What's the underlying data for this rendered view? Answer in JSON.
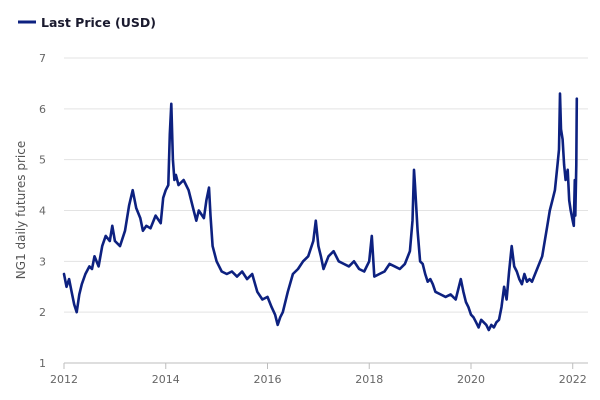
{
  "chart_data": {
    "type": "line",
    "ylabel": "NG1 daily futures price",
    "legend": {
      "placement": "top-left"
    },
    "grid": true,
    "xlim": [
      2012.0,
      2022.3
    ],
    "ylim": [
      1,
      7
    ],
    "xticks": [
      "2012",
      "2014",
      "2016",
      "2018",
      "2020",
      "2022"
    ],
    "yticks": [
      "1",
      "2",
      "3",
      "4",
      "5",
      "6",
      "7"
    ],
    "series": [
      {
        "name": "Last Price (USD)",
        "color": "#0d2180",
        "x": [
          2012.0,
          2012.05,
          2012.1,
          2012.15,
          2012.2,
          2012.25,
          2012.3,
          2012.35,
          2012.42,
          2012.5,
          2012.55,
          2012.6,
          2012.68,
          2012.75,
          2012.82,
          2012.9,
          2012.95,
          2013.0,
          2013.1,
          2013.2,
          2013.28,
          2013.35,
          2013.42,
          2013.5,
          2013.55,
          2013.62,
          2013.7,
          2013.8,
          2013.9,
          2013.95,
          2014.0,
          2014.05,
          2014.08,
          2014.11,
          2014.14,
          2014.17,
          2014.2,
          2014.25,
          2014.35,
          2014.45,
          2014.55,
          2014.6,
          2014.65,
          2014.75,
          2014.8,
          2014.85,
          2014.88,
          2014.92,
          2015.0,
          2015.1,
          2015.2,
          2015.3,
          2015.4,
          2015.5,
          2015.6,
          2015.7,
          2015.8,
          2015.9,
          2016.0,
          2016.08,
          2016.15,
          2016.2,
          2016.25,
          2016.3,
          2016.4,
          2016.5,
          2016.6,
          2016.7,
          2016.8,
          2016.9,
          2016.95,
          2017.0,
          2017.05,
          2017.1,
          2017.2,
          2017.3,
          2017.4,
          2017.5,
          2017.6,
          2017.7,
          2017.8,
          2017.9,
          2018.0,
          2018.05,
          2018.1,
          2018.2,
          2018.3,
          2018.4,
          2018.5,
          2018.6,
          2018.7,
          2018.8,
          2018.85,
          2018.88,
          2018.9,
          2018.95,
          2019.0,
          2019.05,
          2019.1,
          2019.15,
          2019.2,
          2019.25,
          2019.3,
          2019.4,
          2019.5,
          2019.6,
          2019.7,
          2019.8,
          2019.85,
          2019.9,
          2019.95,
          2020.0,
          2020.05,
          2020.1,
          2020.15,
          2020.2,
          2020.25,
          2020.3,
          2020.35,
          2020.4,
          2020.45,
          2020.5,
          2020.55,
          2020.6,
          2020.65,
          2020.7,
          2020.75,
          2020.8,
          2020.85,
          2020.9,
          2020.95,
          2021.0,
          2021.05,
          2021.1,
          2021.15,
          2021.2,
          2021.3,
          2021.4,
          2021.5,
          2021.55,
          2021.6,
          2021.65,
          2021.7,
          2021.73,
          2021.75,
          2021.77,
          2021.8,
          2021.83,
          2021.86,
          2021.9,
          2021.93,
          2021.96,
          2022.0,
          2022.02,
          2022.04,
          2022.05,
          2022.07,
          2022.08
        ],
        "values": [
          2.75,
          2.5,
          2.65,
          2.4,
          2.15,
          2.0,
          2.35,
          2.55,
          2.75,
          2.9,
          2.85,
          3.1,
          2.9,
          3.3,
          3.5,
          3.4,
          3.7,
          3.4,
          3.3,
          3.6,
          4.1,
          4.4,
          4.05,
          3.85,
          3.6,
          3.7,
          3.65,
          3.9,
          3.75,
          4.25,
          4.4,
          4.5,
          5.5,
          6.1,
          5.0,
          4.6,
          4.7,
          4.5,
          4.6,
          4.4,
          4.0,
          3.8,
          4.0,
          3.85,
          4.2,
          4.45,
          3.9,
          3.3,
          3.0,
          2.8,
          2.75,
          2.8,
          2.7,
          2.8,
          2.65,
          2.75,
          2.4,
          2.25,
          2.3,
          2.1,
          1.95,
          1.75,
          1.9,
          2.0,
          2.4,
          2.75,
          2.85,
          3.0,
          3.1,
          3.4,
          3.8,
          3.3,
          3.1,
          2.85,
          3.1,
          3.2,
          3.0,
          2.95,
          2.9,
          3.0,
          2.85,
          2.8,
          3.0,
          3.5,
          2.7,
          2.75,
          2.8,
          2.95,
          2.9,
          2.85,
          2.95,
          3.2,
          3.8,
          4.8,
          4.5,
          3.6,
          3.0,
          2.95,
          2.75,
          2.6,
          2.65,
          2.55,
          2.4,
          2.35,
          2.3,
          2.35,
          2.25,
          2.65,
          2.4,
          2.2,
          2.1,
          1.95,
          1.9,
          1.8,
          1.7,
          1.85,
          1.8,
          1.75,
          1.65,
          1.75,
          1.7,
          1.8,
          1.85,
          2.1,
          2.5,
          2.25,
          2.8,
          3.3,
          2.9,
          2.8,
          2.65,
          2.55,
          2.75,
          2.6,
          2.65,
          2.6,
          2.85,
          3.1,
          3.7,
          4.0,
          4.2,
          4.4,
          4.9,
          5.2,
          6.3,
          5.6,
          5.4,
          4.9,
          4.6,
          4.8,
          4.2,
          4.0,
          3.8,
          3.7,
          4.6,
          3.9,
          4.9,
          6.2
        ]
      }
    ]
  }
}
